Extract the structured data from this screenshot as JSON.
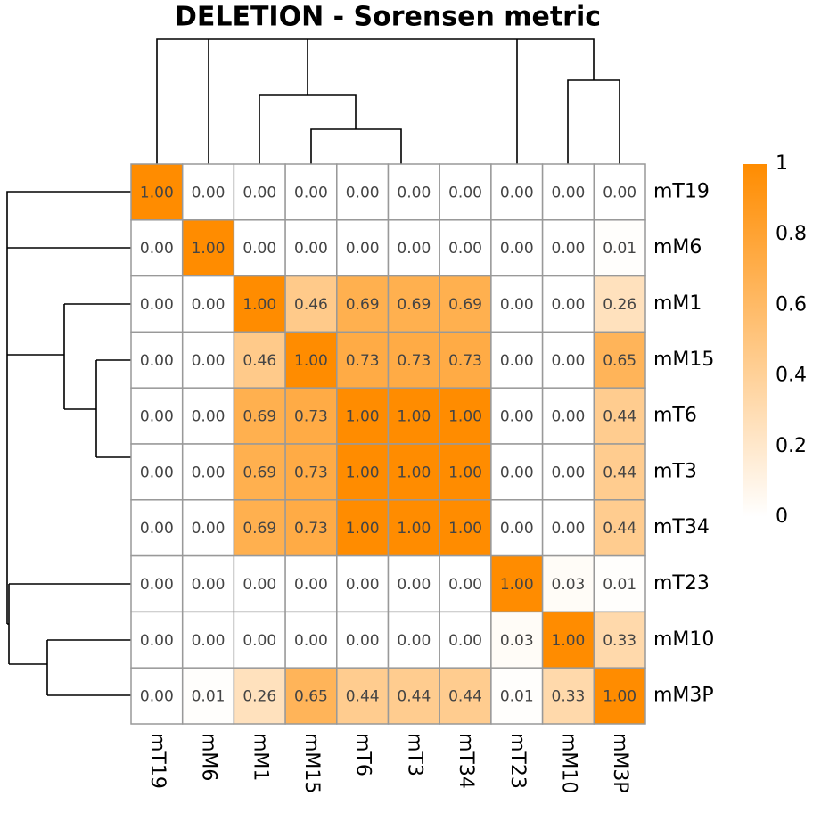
{
  "chart_data": {
    "type": "heatmap",
    "title": "DELETION - Sorensen metric",
    "rows": [
      "mT19",
      "mM6",
      "mM1",
      "mM15",
      "mT6",
      "mT3",
      "mT34",
      "mT23",
      "mM10",
      "mM3P"
    ],
    "columns": [
      "mT19",
      "mM6",
      "mM1",
      "mM15",
      "mT6",
      "mT3",
      "mT34",
      "mT23",
      "mM10",
      "mM3P"
    ],
    "values": [
      [
        1,
        0,
        0,
        0,
        0,
        0,
        0,
        0,
        0,
        0
      ],
      [
        0,
        1,
        0,
        0,
        0,
        0,
        0,
        0,
        0,
        0.01
      ],
      [
        0,
        0,
        1,
        0.46,
        0.69,
        0.69,
        0.69,
        0,
        0,
        0.26
      ],
      [
        0,
        0,
        0.46,
        1,
        0.73,
        0.73,
        0.73,
        0,
        0,
        0.65
      ],
      [
        0,
        0,
        0.69,
        0.73,
        1,
        1,
        1,
        0,
        0,
        0.44
      ],
      [
        0,
        0,
        0.69,
        0.73,
        1,
        1,
        1,
        0,
        0,
        0.44
      ],
      [
        0,
        0,
        0.69,
        0.73,
        1,
        1,
        1,
        0,
        0,
        0.44
      ],
      [
        0,
        0,
        0,
        0,
        0,
        0,
        0,
        1,
        0.03,
        0.01
      ],
      [
        0,
        0,
        0,
        0,
        0,
        0,
        0,
        0.03,
        1,
        0.33
      ],
      [
        0,
        0.01,
        0.26,
        0.65,
        0.44,
        0.44,
        0.44,
        0.01,
        0.33,
        1
      ]
    ],
    "value_labels": [
      [
        "1.00",
        "0.00",
        "0.00",
        "0.00",
        "0.00",
        "0.00",
        "0.00",
        "0.00",
        "0.00",
        "0.00"
      ],
      [
        "0.00",
        "1.00",
        "0.00",
        "0.00",
        "0.00",
        "0.00",
        "0.00",
        "0.00",
        "0.00",
        "0.01"
      ],
      [
        "0.00",
        "0.00",
        "1.00",
        "0.46",
        "0.69",
        "0.69",
        "0.69",
        "0.00",
        "0.00",
        "0.26"
      ],
      [
        "0.00",
        "0.00",
        "0.46",
        "1.00",
        "0.73",
        "0.73",
        "0.73",
        "0.00",
        "0.00",
        "0.65"
      ],
      [
        "0.00",
        "0.00",
        "0.69",
        "0.73",
        "1.00",
        "1.00",
        "1.00",
        "0.00",
        "0.00",
        "0.44"
      ],
      [
        "0.00",
        "0.00",
        "0.69",
        "0.73",
        "1.00",
        "1.00",
        "1.00",
        "0.00",
        "0.00",
        "0.44"
      ],
      [
        "0.00",
        "0.00",
        "0.69",
        "0.73",
        "1.00",
        "1.00",
        "1.00",
        "0.00",
        "0.00",
        "0.44"
      ],
      [
        "0.00",
        "0.00",
        "0.00",
        "0.00",
        "0.00",
        "0.00",
        "0.00",
        "1.00",
        "0.03",
        "0.01"
      ],
      [
        "0.00",
        "0.00",
        "0.00",
        "0.00",
        "0.00",
        "0.00",
        "0.00",
        "0.03",
        "1.00",
        "0.33"
      ],
      [
        "0.00",
        "0.01",
        "0.26",
        "0.65",
        "0.44",
        "0.44",
        "0.44",
        "0.01",
        "0.33",
        "1.00"
      ]
    ],
    "color_low": "#ffffff",
    "color_high": "#ff8c00",
    "colorbar_lim": [
      0,
      1
    ],
    "colorbar_ticks": [
      0,
      0.2,
      0.4,
      0.6,
      0.8,
      1
    ]
  }
}
